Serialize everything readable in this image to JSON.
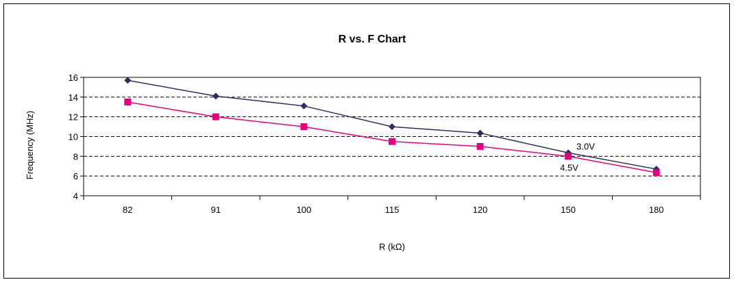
{
  "chart_data": {
    "type": "line",
    "title": "R vs. F Chart",
    "xlabel": "R (kΩ)",
    "ylabel": "Frequency (MHz)",
    "categories": [
      "82",
      "91",
      "100",
      "115",
      "120",
      "150",
      "180"
    ],
    "ylim": [
      4,
      16
    ],
    "yticks": [
      "4",
      "6",
      "8",
      "10",
      "12",
      "14",
      "16"
    ],
    "grid": "horizontal dashed",
    "legend": "inline labels near right end",
    "series": [
      {
        "name": "3.0V",
        "values": [
          15.7,
          14.1,
          13.1,
          11.0,
          10.35,
          8.35,
          6.7
        ],
        "color": "#2e2d63",
        "marker": "diamond"
      },
      {
        "name": "4.5V",
        "values": [
          13.5,
          12.0,
          11.0,
          9.5,
          9.0,
          8.0,
          6.35
        ],
        "color": "#e5007f",
        "marker": "square"
      }
    ]
  }
}
